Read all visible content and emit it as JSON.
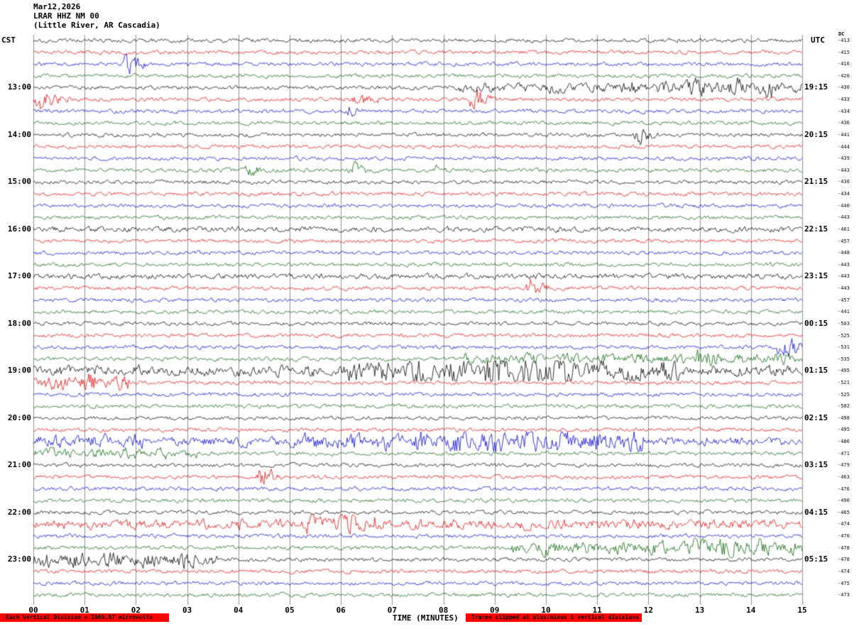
{
  "header": {
    "date": "Mar12,2026",
    "station_line": "LRAR HHZ NM 00",
    "location_line": "(Little River, AR Cascadia)",
    "left_tz": "CST",
    "right_tz": "UTC",
    "dc_label": "DC"
  },
  "footer": {
    "x_axis_label": "TIME (MINUTES)",
    "scale_note": "Each Vertical Division = 1666.67 microvolts",
    "clip_note": "Traces clipped at plus/minus 5 vertical divisions"
  },
  "axes": {
    "x_ticks": [
      "00",
      "01",
      "02",
      "03",
      "04",
      "05",
      "06",
      "07",
      "08",
      "09",
      "10",
      "11",
      "12",
      "13",
      "14",
      "15"
    ],
    "left_time_labels": [
      {
        "row": 4,
        "label": "13:00"
      },
      {
        "row": 8,
        "label": "14:00"
      },
      {
        "row": 12,
        "label": "15:00"
      },
      {
        "row": 16,
        "label": "16:00"
      },
      {
        "row": 20,
        "label": "17:00"
      },
      {
        "row": 24,
        "label": "18:00"
      },
      {
        "row": 28,
        "label": "19:00"
      },
      {
        "row": 32,
        "label": "20:00"
      },
      {
        "row": 36,
        "label": "21:00"
      },
      {
        "row": 40,
        "label": "22:00"
      },
      {
        "row": 44,
        "label": "23:00"
      }
    ],
    "right_time_labels": [
      {
        "row": 4,
        "label": "19:15"
      },
      {
        "row": 8,
        "label": "20:15"
      },
      {
        "row": 12,
        "label": "21:15"
      },
      {
        "row": 16,
        "label": "22:15"
      },
      {
        "row": 20,
        "label": "23:15"
      },
      {
        "row": 24,
        "label": "00:15"
      },
      {
        "row": 28,
        "label": "01:15"
      },
      {
        "row": 32,
        "label": "02:15"
      },
      {
        "row": 36,
        "label": "03:15"
      },
      {
        "row": 40,
        "label": "04:15"
      },
      {
        "row": 44,
        "label": "05:15"
      }
    ]
  },
  "chart_data": {
    "type": "line",
    "title": "LRAR HHZ NM 00 helicorder - Mar12,2026 (Little River, AR Cascadia)",
    "xlabel": "TIME (MINUTES)",
    "x_range_minutes": [
      0,
      15
    ],
    "minutes_per_line": 15,
    "lines_per_hour": 4,
    "microvolts_per_division": 1666.67,
    "clip_divisions": 5,
    "grid": true,
    "colors": {
      "black": "#000000",
      "red": "#ee0000",
      "blue": "#0000dd",
      "green": "#006600"
    },
    "base_noise_amp": 1.6,
    "traces": [
      {
        "t": "12:00",
        "c": "black",
        "dc": -413
      },
      {
        "t": "12:15",
        "c": "red",
        "dc": -415
      },
      {
        "t": "12:30",
        "c": "blue",
        "dc": -416
      },
      {
        "t": "12:45",
        "c": "green",
        "dc": -420
      },
      {
        "t": "13:00",
        "c": "black",
        "dc": -430
      },
      {
        "t": "13:15",
        "c": "red",
        "dc": -433
      },
      {
        "t": "13:30",
        "c": "blue",
        "dc": -434
      },
      {
        "t": "13:45",
        "c": "green",
        "dc": -436
      },
      {
        "t": "14:00",
        "c": "black",
        "dc": -441
      },
      {
        "t": "14:15",
        "c": "red",
        "dc": -444
      },
      {
        "t": "14:30",
        "c": "blue",
        "dc": -439
      },
      {
        "t": "14:45",
        "c": "green",
        "dc": -443
      },
      {
        "t": "15:00",
        "c": "black",
        "dc": -436
      },
      {
        "t": "15:15",
        "c": "red",
        "dc": -434
      },
      {
        "t": "15:30",
        "c": "blue",
        "dc": -440
      },
      {
        "t": "15:45",
        "c": "green",
        "dc": -443
      },
      {
        "t": "16:00",
        "c": "black",
        "dc": -461
      },
      {
        "t": "16:15",
        "c": "red",
        "dc": -457
      },
      {
        "t": "16:30",
        "c": "blue",
        "dc": -448
      },
      {
        "t": "16:45",
        "c": "green",
        "dc": -443
      },
      {
        "t": "17:00",
        "c": "black",
        "dc": -443
      },
      {
        "t": "17:15",
        "c": "red",
        "dc": -443
      },
      {
        "t": "17:30",
        "c": "blue",
        "dc": -457
      },
      {
        "t": "17:45",
        "c": "green",
        "dc": -441
      },
      {
        "t": "18:00",
        "c": "black",
        "dc": -503
      },
      {
        "t": "18:15",
        "c": "red",
        "dc": -525
      },
      {
        "t": "18:30",
        "c": "blue",
        "dc": -531
      },
      {
        "t": "18:45",
        "c": "green",
        "dc": -535
      },
      {
        "t": "19:00",
        "c": "black",
        "dc": -495
      },
      {
        "t": "19:15",
        "c": "red",
        "dc": -521
      },
      {
        "t": "19:30",
        "c": "blue",
        "dc": -525
      },
      {
        "t": "19:45",
        "c": "green",
        "dc": -502
      },
      {
        "t": "20:00",
        "c": "black",
        "dc": -498
      },
      {
        "t": "20:15",
        "c": "red",
        "dc": -495
      },
      {
        "t": "20:30",
        "c": "blue",
        "dc": -486
      },
      {
        "t": "20:45",
        "c": "green",
        "dc": -471
      },
      {
        "t": "21:00",
        "c": "black",
        "dc": -479
      },
      {
        "t": "21:15",
        "c": "red",
        "dc": -463
      },
      {
        "t": "21:30",
        "c": "blue",
        "dc": -476
      },
      {
        "t": "21:45",
        "c": "green",
        "dc": -490
      },
      {
        "t": "22:00",
        "c": "black",
        "dc": -465
      },
      {
        "t": "22:15",
        "c": "red",
        "dc": -474
      },
      {
        "t": "22:30",
        "c": "blue",
        "dc": -470
      },
      {
        "t": "22:45",
        "c": "green",
        "dc": -478
      },
      {
        "t": "23:00",
        "c": "black",
        "dc": -478
      },
      {
        "t": "23:15",
        "c": "red",
        "dc": -474
      },
      {
        "t": "23:30",
        "c": "blue",
        "dc": -475
      },
      {
        "t": "23:45",
        "c": "green",
        "dc": -473
      }
    ],
    "events": [
      {
        "t": 2,
        "s": 1.75,
        "e": 2.3,
        "a": 13,
        "k": "burst"
      },
      {
        "t": 4,
        "s": 8.3,
        "e": 11.5,
        "a": 3.5,
        "k": "band"
      },
      {
        "t": 4,
        "s": 11.5,
        "e": 15,
        "a": 5,
        "k": "band"
      },
      {
        "t": 4,
        "s": 12.7,
        "e": 14.4,
        "a": 3,
        "k": "band"
      },
      {
        "t": 5,
        "s": 0.0,
        "e": 0.8,
        "a": 9,
        "k": "burst"
      },
      {
        "t": 5,
        "s": 6.2,
        "e": 6.9,
        "a": 7,
        "k": "burst"
      },
      {
        "t": 5,
        "s": 8.5,
        "e": 9.1,
        "a": 11,
        "k": "burst"
      },
      {
        "t": 6,
        "s": 6.1,
        "e": 6.5,
        "a": 5,
        "k": "burst"
      },
      {
        "t": 8,
        "s": 11.7,
        "e": 12.3,
        "a": 8,
        "k": "burst"
      },
      {
        "t": 11,
        "s": 4.1,
        "e": 4.6,
        "a": 6,
        "k": "burst"
      },
      {
        "t": 11,
        "s": 6.1,
        "e": 6.7,
        "a": 6,
        "k": "burst"
      },
      {
        "t": 11,
        "s": 7.8,
        "e": 8.2,
        "a": 4,
        "k": "burst"
      },
      {
        "t": 16,
        "s": 0,
        "e": 15,
        "a": 0.8,
        "k": "band"
      },
      {
        "t": 20,
        "s": 0,
        "e": 15,
        "a": 0.8,
        "k": "band"
      },
      {
        "t": 21,
        "s": 9.6,
        "e": 10.2,
        "a": 8,
        "k": "burst"
      },
      {
        "t": 26,
        "s": 14.5,
        "e": 15,
        "a": 7,
        "k": "band"
      },
      {
        "t": 27,
        "s": 8.4,
        "e": 15,
        "a": 3.5,
        "k": "band"
      },
      {
        "t": 27,
        "s": 12.9,
        "e": 13.4,
        "a": 6,
        "k": "burst"
      },
      {
        "t": 28,
        "s": 0,
        "e": 15,
        "a": 3.5,
        "k": "band"
      },
      {
        "t": 28,
        "s": 6.0,
        "e": 12.6,
        "a": 6,
        "k": "band"
      },
      {
        "t": 28,
        "s": 8.7,
        "e": 10.6,
        "a": 9,
        "k": "band"
      },
      {
        "t": 29,
        "s": 0,
        "e": 1.9,
        "a": 7,
        "k": "band"
      },
      {
        "t": 34,
        "s": 0,
        "e": 2.2,
        "a": 3,
        "k": "band"
      },
      {
        "t": 34,
        "s": 0,
        "e": 15,
        "a": 2.5,
        "k": "band"
      },
      {
        "t": 34,
        "s": 5.0,
        "e": 7.2,
        "a": 4.5,
        "k": "band"
      },
      {
        "t": 34,
        "s": 7.4,
        "e": 11.9,
        "a": 7.5,
        "k": "band"
      },
      {
        "t": 35,
        "s": 0,
        "e": 3.2,
        "a": 3.5,
        "k": "band"
      },
      {
        "t": 37,
        "s": 4.35,
        "e": 4.9,
        "a": 11,
        "k": "burst"
      },
      {
        "t": 41,
        "s": 0,
        "e": 15,
        "a": 3,
        "k": "band"
      },
      {
        "t": 41,
        "s": 5.3,
        "e": 6.7,
        "a": 6.5,
        "k": "band"
      },
      {
        "t": 43,
        "s": 9.3,
        "e": 15,
        "a": 5,
        "k": "band"
      },
      {
        "t": 43,
        "s": 12.8,
        "e": 14.3,
        "a": 4,
        "k": "band"
      },
      {
        "t": 44,
        "s": 0,
        "e": 3.6,
        "a": 6,
        "k": "band"
      }
    ]
  }
}
